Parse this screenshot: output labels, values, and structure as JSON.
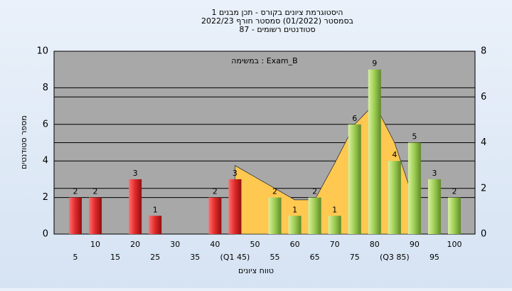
{
  "chart_data": {
    "type": "bar",
    "title_lines": [
      "היסטוגרמת ציונים בקורס - תכן מבנים 1",
      "בסמסטר  (01/2022)  סמסטר חורף 2022/23",
      "סטודנטים רשומים - 87"
    ],
    "annotation": "במשימה : Exam_B",
    "y_label": "מספר סטודנטים",
    "x_label": "טווח ציונים",
    "categories": [
      "5",
      "10",
      "15",
      "20",
      "25",
      "30",
      "35",
      "40",
      "(Q1 45)",
      "50",
      "55",
      "60",
      "65",
      "70",
      "75",
      "80",
      "(Q3 85)",
      "90",
      "95",
      "100"
    ],
    "series": [
      {
        "color": "#e02828",
        "values": [
          2,
          2,
          0,
          3,
          1,
          0,
          0,
          2,
          3,
          null,
          null,
          null,
          null,
          null,
          null,
          null,
          null,
          null,
          null,
          null
        ]
      },
      {
        "color": "#9ccc52",
        "values": [
          null,
          null,
          null,
          null,
          null,
          null,
          null,
          null,
          null,
          0,
          2,
          1,
          2,
          1,
          6,
          9,
          4,
          5,
          3,
          2
        ]
      }
    ],
    "area": {
      "color": "#ffc850",
      "axis": "y2",
      "values": [
        null,
        null,
        null,
        null,
        null,
        null,
        null,
        null,
        3.0,
        2.5,
        2.0,
        1.5,
        1.5,
        3.1,
        4.8,
        5.7,
        4.0,
        1.4,
        null,
        null
      ]
    },
    "ylim": [
      0,
      10
    ],
    "yticks": [
      0,
      2,
      4,
      6,
      8,
      10
    ],
    "y2lim": [
      0,
      8
    ],
    "y2ticks": [
      0,
      2,
      4,
      6,
      8
    ],
    "grid": true
  }
}
